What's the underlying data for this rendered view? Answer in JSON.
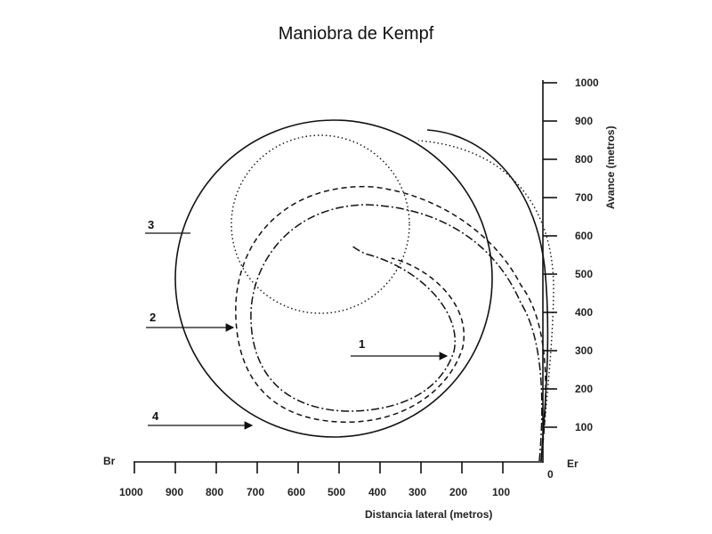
{
  "title": "Maniobra de Kempf",
  "x_axis": {
    "title": "Distancia lateral (metros)",
    "ticks": [
      "1000",
      "900",
      "800",
      "700",
      "600",
      "500",
      "400",
      "300",
      "200",
      "100"
    ],
    "left_label": "Br",
    "origin_label": "0",
    "right_label": "Er"
  },
  "y_axis": {
    "title": "Avance (metros)",
    "ticks": [
      "100",
      "200",
      "300",
      "400",
      "500",
      "600",
      "700",
      "800",
      "900",
      "1000"
    ]
  },
  "curves": [
    {
      "label": "1"
    },
    {
      "label": "2"
    },
    {
      "label": "3"
    },
    {
      "label": "4"
    }
  ],
  "line_color": "#111111"
}
